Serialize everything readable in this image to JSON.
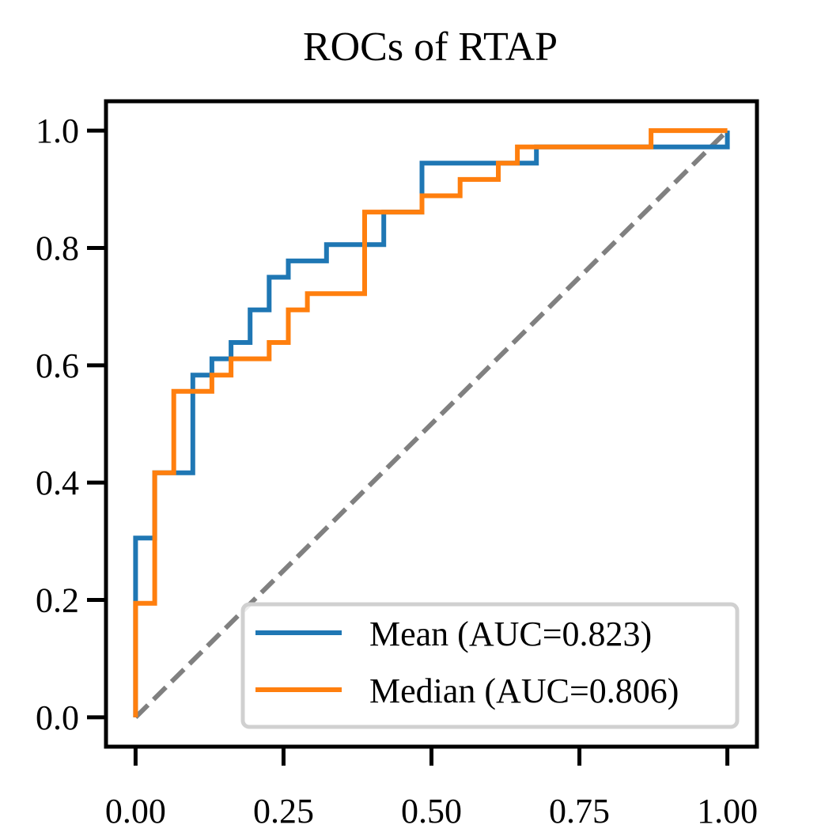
{
  "chart_data": {
    "type": "line",
    "title": "ROCs of RTAP",
    "xlabel": "",
    "ylabel": "",
    "xlim": [
      -0.05,
      1.05
    ],
    "ylim": [
      -0.05,
      1.05
    ],
    "xticks": [
      0.0,
      0.25,
      0.5,
      0.75,
      1.0
    ],
    "xtick_labels": [
      "0.00",
      "0.25",
      "0.50",
      "0.75",
      "1.00"
    ],
    "yticks": [
      0.0,
      0.2,
      0.4,
      0.6,
      0.8,
      1.0
    ],
    "ytick_labels": [
      "0.0",
      "0.2",
      "0.4",
      "0.6",
      "0.8",
      "1.0"
    ],
    "grid": false,
    "legend_position": "lower right",
    "series": [
      {
        "name": "Mean (AUC=0.823)",
        "color": "#1f77b4",
        "style": "solid",
        "x": [
          0.0,
          0.0,
          0.0,
          0.0323,
          0.0323,
          0.0968,
          0.0968,
          0.129,
          0.129,
          0.1613,
          0.1613,
          0.1935,
          0.1935,
          0.2258,
          0.2258,
          0.2581,
          0.2581,
          0.3226,
          0.3226,
          0.4194,
          0.4194,
          0.4839,
          0.4839,
          0.6774,
          0.6774,
          1.0,
          1.0
        ],
        "y": [
          0.0,
          0.1944,
          0.3056,
          0.3056,
          0.4167,
          0.4167,
          0.5833,
          0.5833,
          0.6111,
          0.6111,
          0.6389,
          0.6389,
          0.6944,
          0.6944,
          0.75,
          0.75,
          0.7778,
          0.7778,
          0.8056,
          0.8056,
          0.8611,
          0.8611,
          0.9444,
          0.9444,
          0.9722,
          0.9722,
          1.0
        ]
      },
      {
        "name": "Median (AUC=0.806)",
        "color": "#ff7f0e",
        "style": "solid",
        "x": [
          0.0,
          0.0,
          0.0323,
          0.0323,
          0.0645,
          0.0645,
          0.129,
          0.129,
          0.1613,
          0.1613,
          0.2258,
          0.2258,
          0.2581,
          0.2581,
          0.2903,
          0.2903,
          0.3871,
          0.3871,
          0.4839,
          0.4839,
          0.5484,
          0.5484,
          0.6129,
          0.6129,
          0.6452,
          0.6452,
          0.871,
          0.871,
          1.0
        ],
        "y": [
          0.0,
          0.1944,
          0.1944,
          0.4167,
          0.4167,
          0.5556,
          0.5556,
          0.5833,
          0.5833,
          0.6111,
          0.6111,
          0.6389,
          0.6389,
          0.6944,
          0.6944,
          0.7222,
          0.7222,
          0.8611,
          0.8611,
          0.8889,
          0.8889,
          0.9167,
          0.9167,
          0.9444,
          0.9444,
          0.9722,
          0.9722,
          1.0,
          1.0
        ]
      }
    ],
    "reference_line": {
      "x": [
        0.0,
        1.0
      ],
      "y": [
        0.0,
        1.0
      ],
      "color": "#808080",
      "style": "dashed"
    }
  }
}
